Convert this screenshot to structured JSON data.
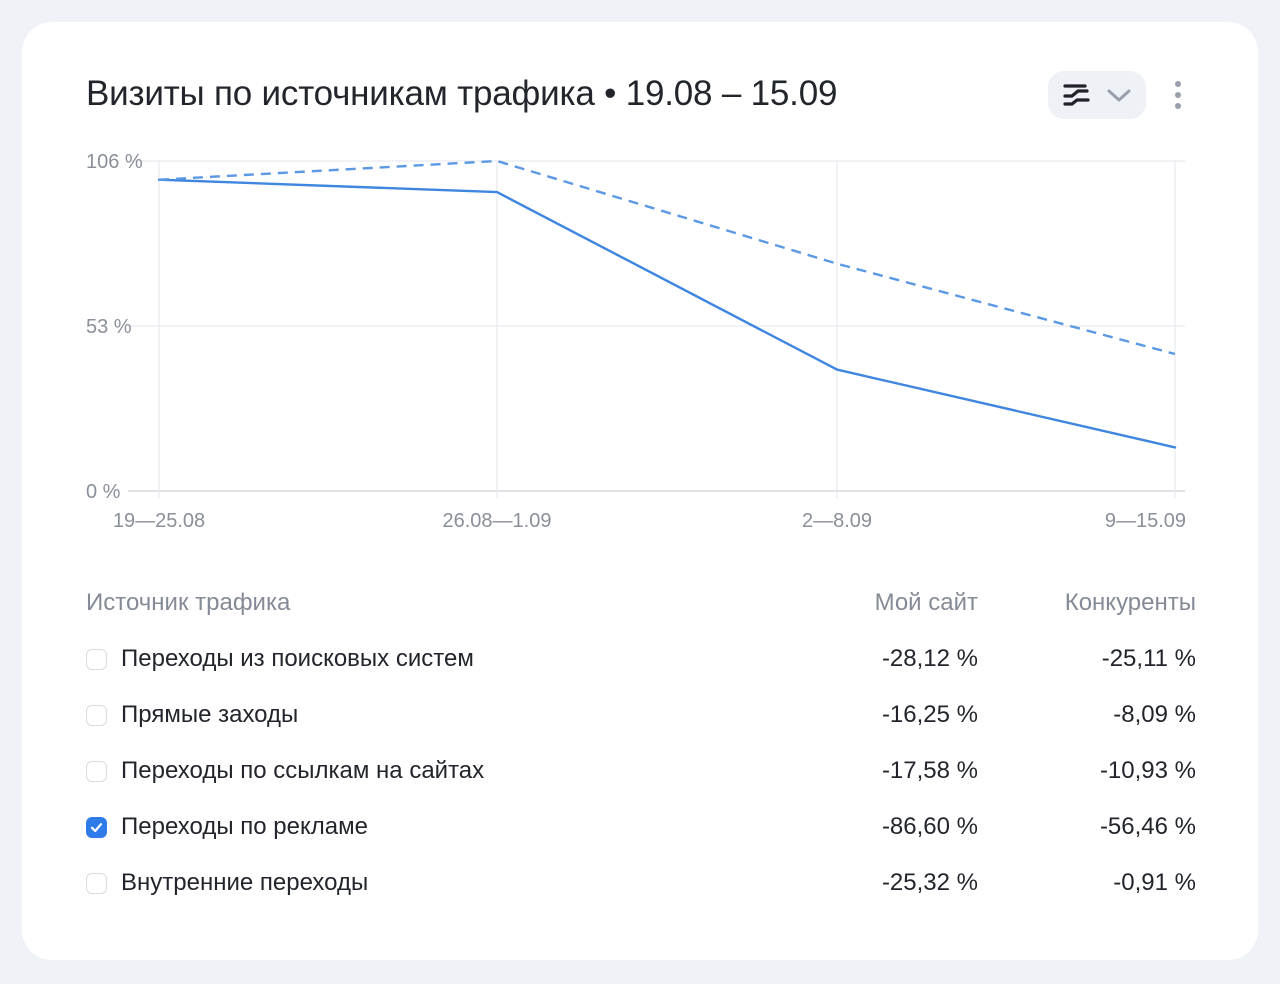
{
  "widget": {
    "title": "Визиты по источникам трафика • 19.08 – 15.09",
    "view_switch_icon": "chart-type-icon",
    "dropdown_icon": "chevron-down-icon",
    "more_icon": "more-vertical-icon"
  },
  "chart_data": {
    "type": "line",
    "categories": [
      "19—25.08",
      "26.08—1.09",
      "2—8.09",
      "9—15.09"
    ],
    "y_ticks": [
      "106 %",
      "53 %",
      "0 %"
    ],
    "ylim": [
      0,
      106
    ],
    "grid": true,
    "series": [
      {
        "style": "solid",
        "values": [
          100,
          96,
          39,
          14
        ],
        "color": "#3f86e0"
      },
      {
        "style": "dashed",
        "values": [
          100,
          106,
          73,
          44
        ],
        "color": "#5c99e4"
      }
    ]
  },
  "table": {
    "header": {
      "source": "Источник трафика",
      "my_site": "Мой сайт",
      "competitors": "Конкуренты"
    },
    "rows": [
      {
        "label": "Переходы из поисковых систем",
        "my_site": "-28,12 %",
        "competitors": "-25,11 %",
        "checked": false
      },
      {
        "label": "Прямые заходы",
        "my_site": "-16,25 %",
        "competitors": "-8,09 %",
        "checked": false
      },
      {
        "label": "Переходы по ссылкам на сайтах",
        "my_site": "-17,58 %",
        "competitors": "-10,93 %",
        "checked": false
      },
      {
        "label": "Переходы по рекламе",
        "my_site": "-86,60 %",
        "competitors": "-56,46 %",
        "checked": true
      },
      {
        "label": "Внутренние переходы",
        "my_site": "-25,32 %",
        "competitors": "-0,91 %",
        "checked": false
      }
    ]
  },
  "colors": {
    "accent": "#2f7bea",
    "background": "#eff2f7",
    "card": "#ffffff"
  }
}
